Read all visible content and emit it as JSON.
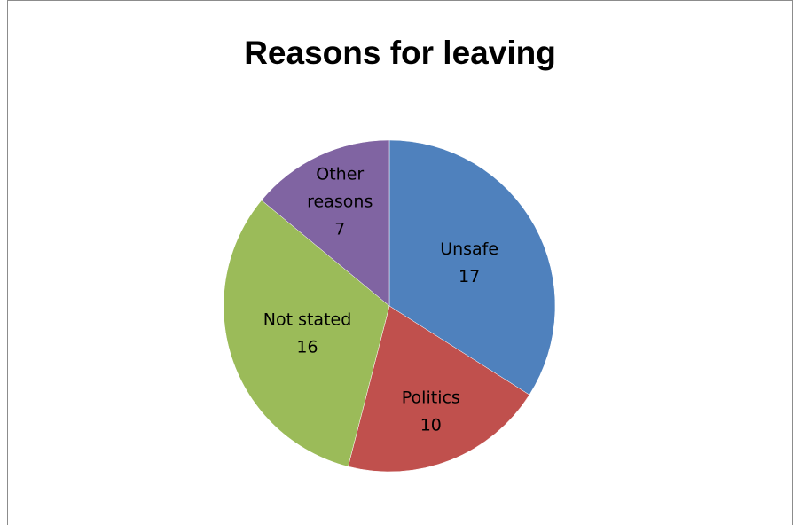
{
  "chart_data": {
    "type": "pie",
    "title": "Reasons for leaving",
    "slices": [
      {
        "label": "Unsafe",
        "value": 17,
        "color": "#4f81bd"
      },
      {
        "label": "Politics",
        "value": 10,
        "color": "#c0504d"
      },
      {
        "label": "Not stated",
        "value": 16,
        "color": "#9bbb59"
      },
      {
        "label": "Other reasons",
        "value": 7,
        "color": "#8064a2"
      }
    ],
    "legend": "none",
    "data_labels": "category-and-value-inside"
  }
}
